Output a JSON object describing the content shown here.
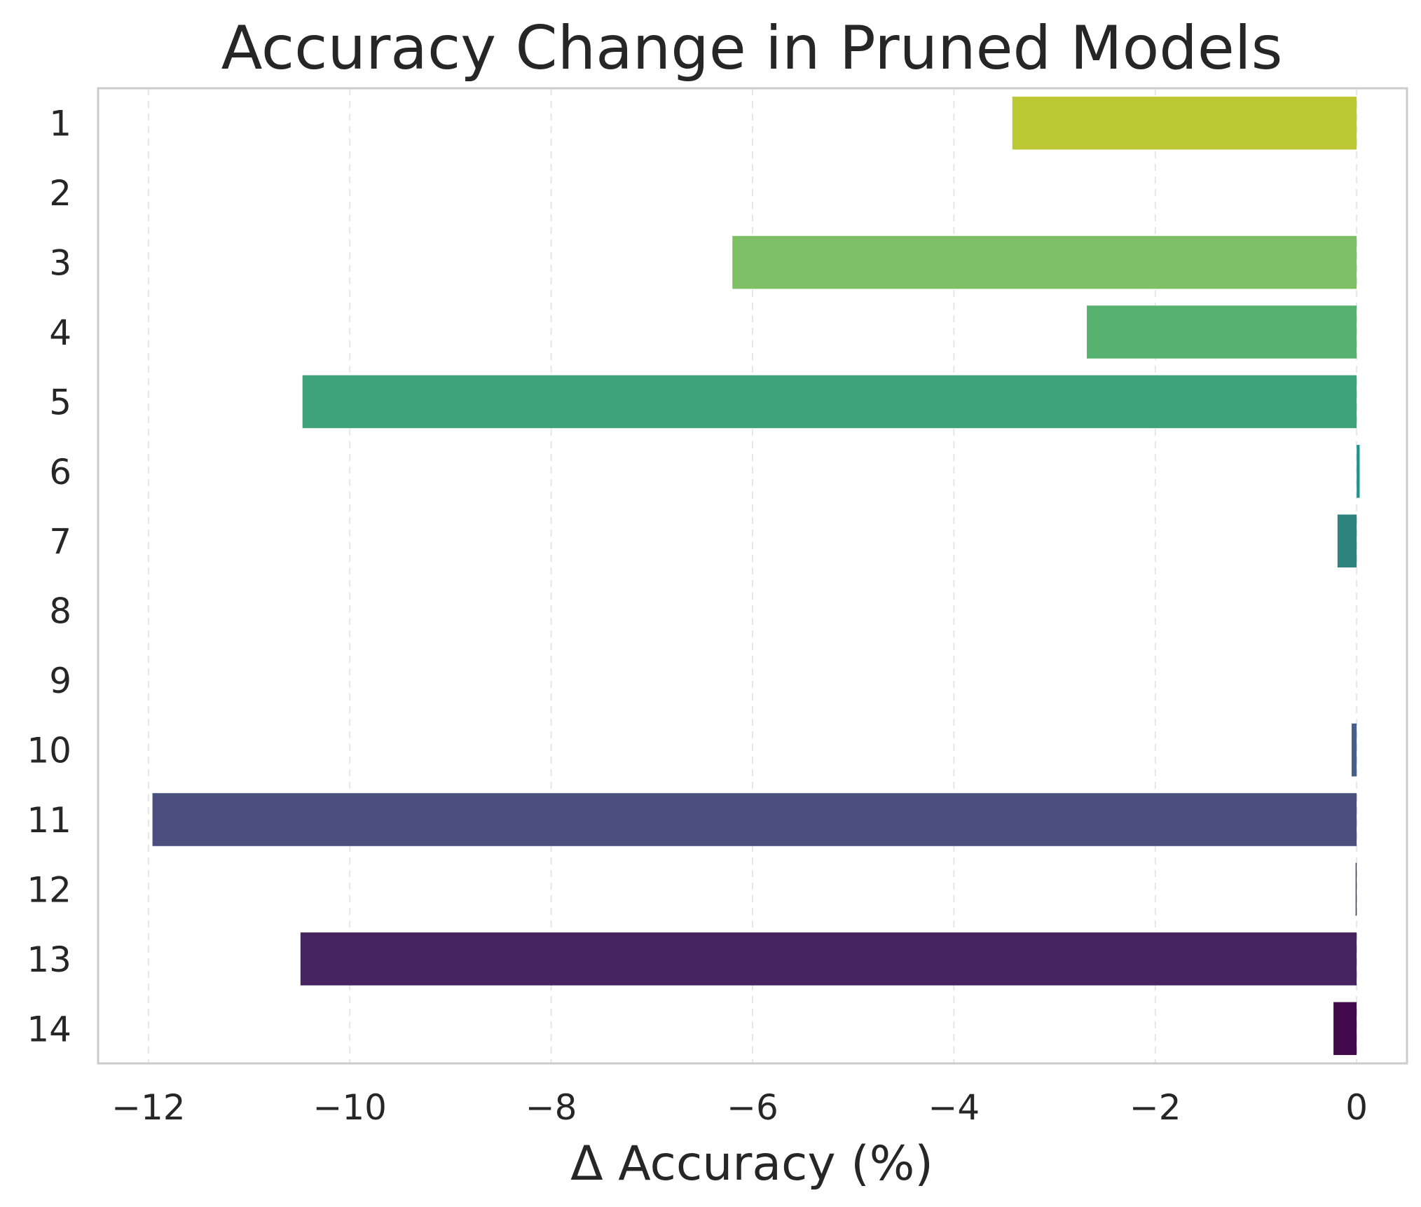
{
  "chart_data": {
    "type": "bar",
    "orientation": "horizontal",
    "title": "Accuracy Change in Pruned Models",
    "xlabel": "Δ Accuracy (%)",
    "ylabel": "",
    "xlim": [
      -12.5,
      0.5
    ],
    "xticks": [
      -12,
      -10,
      -8,
      -6,
      -4,
      -2,
      0
    ],
    "xtick_labels": [
      "−12",
      "−10",
      "−8",
      "−6",
      "−4",
      "−2",
      "0"
    ],
    "grid": "x-dashed",
    "legend": "none",
    "categories": [
      "1",
      "2",
      "3",
      "4",
      "5",
      "6",
      "7",
      "8",
      "9",
      "10",
      "11",
      "12",
      "13",
      "14"
    ],
    "values": [
      -3.42,
      0.0,
      -6.2,
      -2.68,
      -10.47,
      0.03,
      -0.19,
      0.0,
      0.0,
      -0.05,
      -11.96,
      -0.01,
      -10.49,
      -0.23
    ],
    "colors": [
      "#bcc834",
      "#a0d44a",
      "#7dc066",
      "#58b26f",
      "#3fa37a",
      "#20948a",
      "#2e837e",
      "#2f7288",
      "#3b608b",
      "#45608a",
      "#4b4f7e",
      "#3a2f6a",
      "#47235f",
      "#420a4c"
    ]
  }
}
